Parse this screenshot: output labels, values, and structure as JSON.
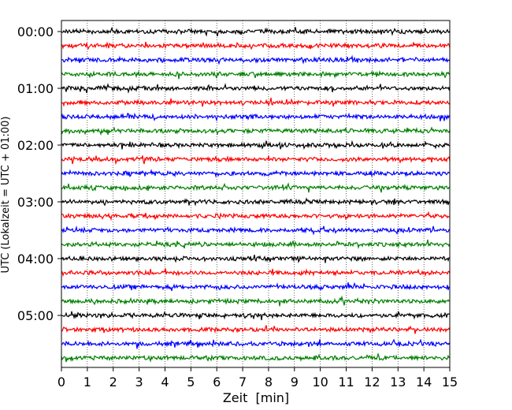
{
  "chart_data": {
    "type": "line",
    "title": "",
    "xlabel": "Zeit  [min]",
    "ylabel": "UTC (Lokalzeit = UTC + 01:00)",
    "xlim": [
      0,
      15
    ],
    "x_ticks": [
      "0",
      "1",
      "2",
      "3",
      "4",
      "5",
      "6",
      "7",
      "8",
      "9",
      "10",
      "11",
      "12",
      "13",
      "14",
      "15"
    ],
    "y_ticks": [
      "00:00",
      "01:00",
      "02:00",
      "03:00",
      "04:00",
      "05:00"
    ],
    "trace_start_minutes": [
      0,
      15,
      30,
      45,
      60,
      75,
      90,
      105,
      120,
      135,
      150,
      165,
      180,
      195,
      210,
      225,
      240,
      255,
      270,
      285,
      300,
      315,
      330,
      345
    ],
    "trace_colors": [
      "#000000",
      "#ff0000",
      "#0000ff",
      "#008000"
    ],
    "grid": "vertical dotted lines at each minute",
    "legend": "none"
  }
}
